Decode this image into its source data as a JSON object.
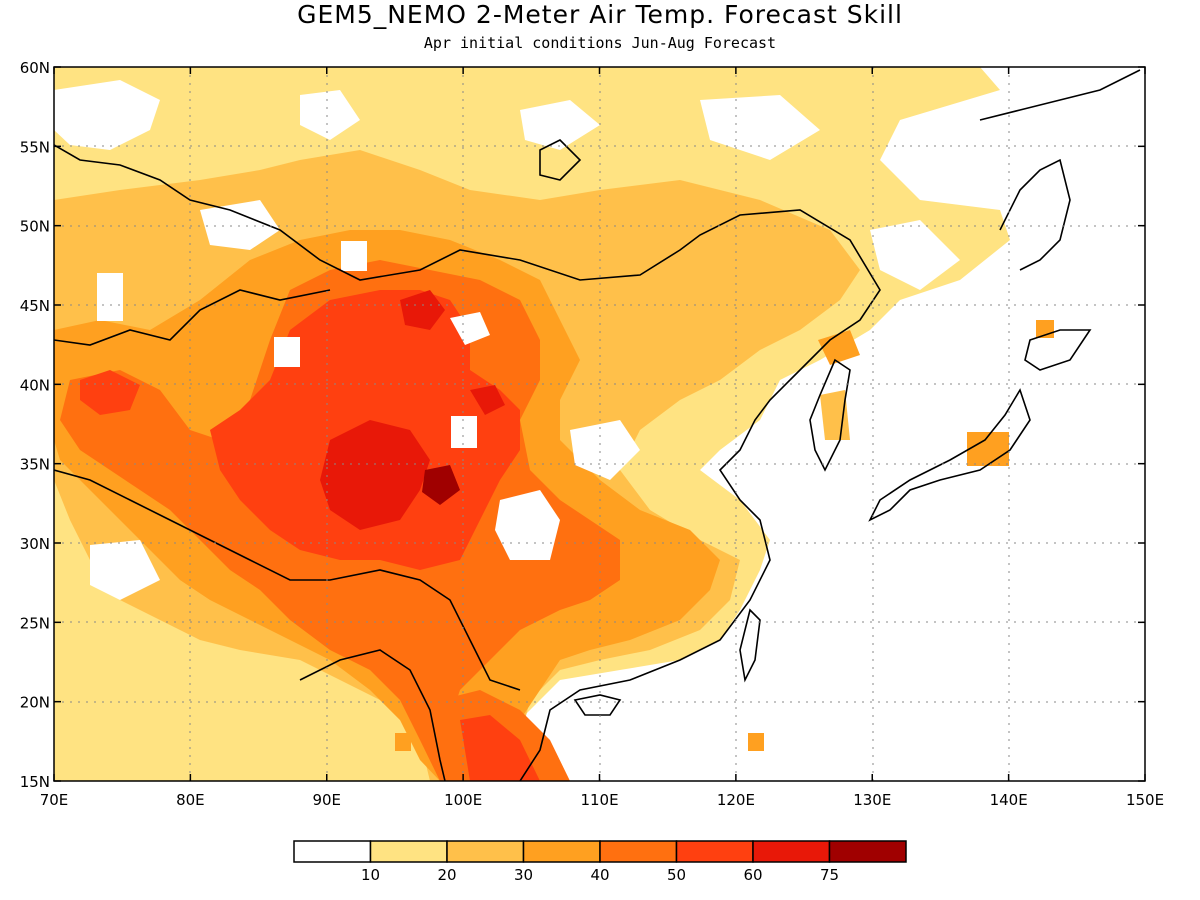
{
  "title": "GEM5_NEMO 2-Meter Air Temp. Forecast Skill",
  "subtitle": "Apr initial conditions  Jun-Aug Forecast",
  "map": {
    "lon_range": [
      70,
      150
    ],
    "lat_range": [
      15,
      60
    ],
    "lon_ticks": [
      "70E",
      "80E",
      "90E",
      "100E",
      "110E",
      "120E",
      "130E",
      "140E",
      "150E"
    ],
    "lat_ticks": [
      "15N",
      "20N",
      "25N",
      "30N",
      "35N",
      "40N",
      "45N",
      "50N",
      "55N",
      "60N"
    ],
    "gridlines": "dotted"
  },
  "colorbar": {
    "labels": [
      "10",
      "20",
      "30",
      "40",
      "50",
      "60",
      "75"
    ],
    "colors": [
      "#ffffff",
      "#ffe382",
      "#ffc04a",
      "#ffa020",
      "#ff7010",
      "#ff4010",
      "#e81808",
      "#a00000"
    ]
  }
}
